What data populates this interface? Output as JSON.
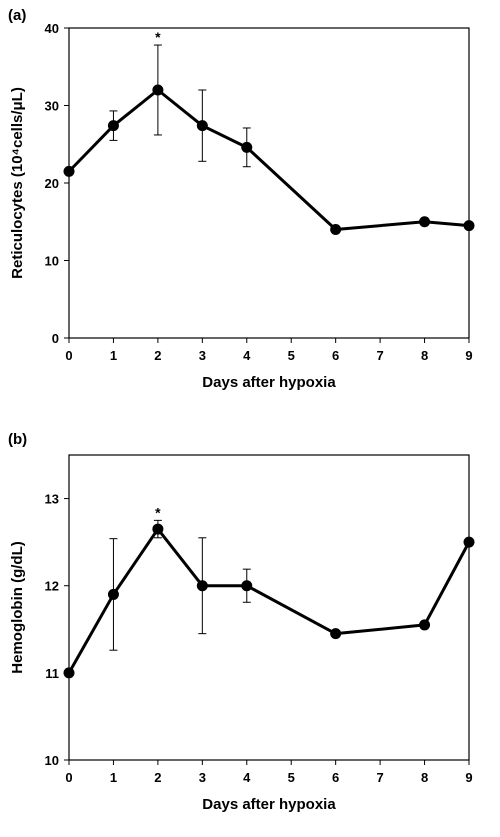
{
  "chart_data": [
    {
      "type": "line",
      "panel_label": "(a)",
      "xlabel": "Days after hypoxia",
      "ylabel": "Reticulocytes (10⁴cells/μL)",
      "ylim": [
        0,
        40
      ],
      "yticks": [
        "0",
        "10",
        "20",
        "30",
        "40"
      ],
      "xticks": [
        "0",
        "1",
        "2",
        "3",
        "4",
        "5",
        "6",
        "7",
        "8",
        "9"
      ],
      "series": [
        {
          "x": [
            0,
            1,
            2,
            3,
            4,
            6,
            8,
            9
          ],
          "values": [
            21.5,
            27.4,
            32.0,
            27.4,
            24.6,
            14.0,
            15.0,
            14.5
          ],
          "error": [
            0,
            1.9,
            5.8,
            4.6,
            2.5,
            0,
            0,
            0
          ]
        }
      ],
      "annotations": [
        {
          "x": 2,
          "text": "*"
        }
      ]
    },
    {
      "type": "line",
      "panel_label": "(b)",
      "xlabel": "Days after hypoxia",
      "ylabel": "Hemoglobin (g/dL)",
      "ylim": [
        10,
        13.5
      ],
      "yticks": [
        "10",
        "11",
        "12",
        "13"
      ],
      "xticks": [
        "0",
        "1",
        "2",
        "3",
        "4",
        "5",
        "6",
        "7",
        "8",
        "9"
      ],
      "series": [
        {
          "x": [
            0,
            1,
            2,
            3,
            4,
            6,
            8,
            9
          ],
          "values": [
            11.0,
            11.9,
            12.65,
            12.0,
            12.0,
            11.45,
            11.55,
            12.5
          ],
          "error": [
            0,
            0.64,
            0.1,
            0.55,
            0.19,
            0,
            0,
            0
          ]
        }
      ],
      "annotations": [
        {
          "x": 2,
          "text": "*"
        }
      ]
    }
  ]
}
